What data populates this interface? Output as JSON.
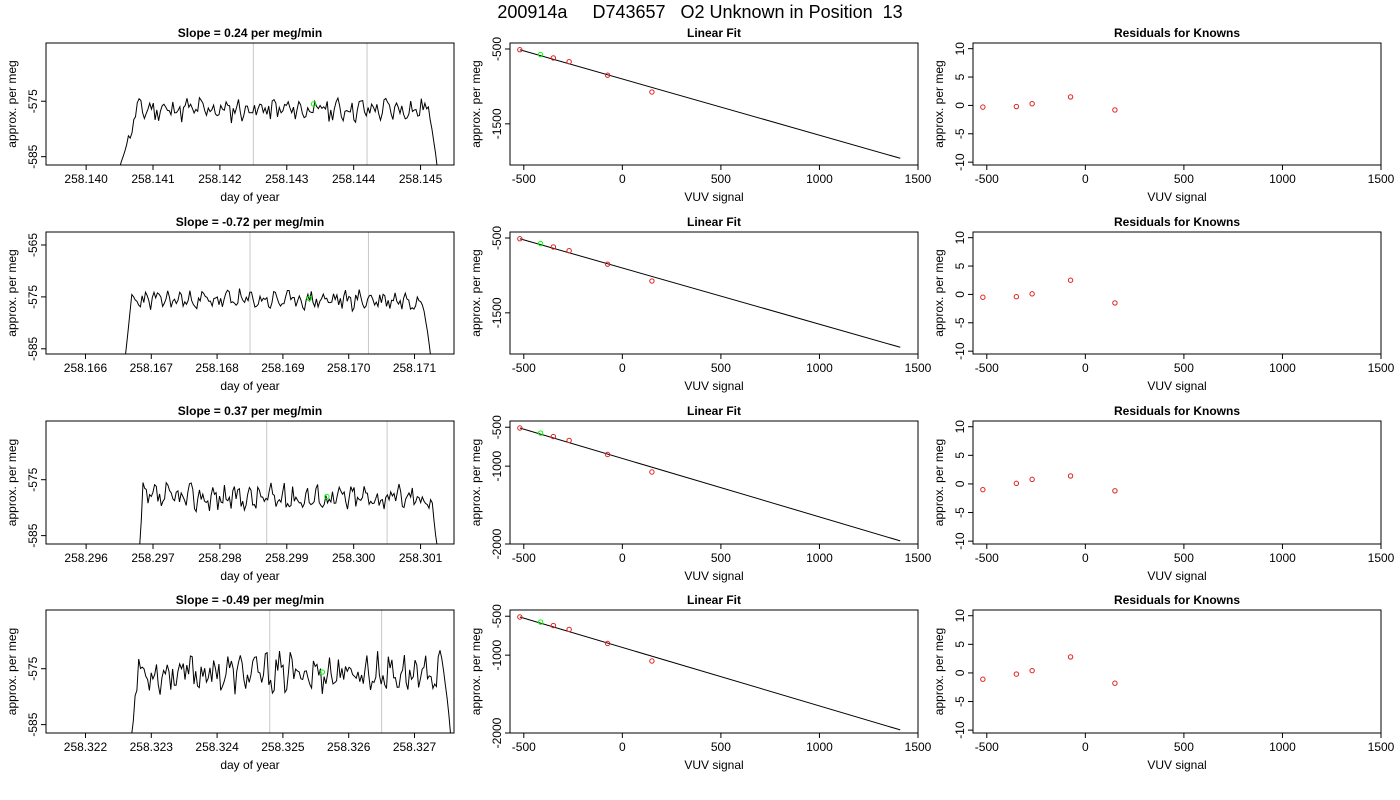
{
  "figure": {
    "title": "200914a     D743657   O2 Unknown in Position  13"
  },
  "chart_data": [
    {
      "type": "line",
      "row": 0,
      "col": 0,
      "title": "Slope =  0.24  per meg/min",
      "xlabel": "day of year",
      "ylabel": "approx. per meg",
      "xlim": [
        258.1394,
        258.1455
      ],
      "ylim": [
        -586.5,
        -564.5
      ],
      "xticks": [
        258.14,
        258.141,
        258.142,
        258.143,
        258.144,
        258.145
      ],
      "xtick_labels": [
        "258.140",
        "258.141",
        "258.142",
        "258.143",
        "258.144",
        "258.145"
      ],
      "yticks": [
        -585,
        -575
      ],
      "ytick_labels": [
        "-585",
        "-575"
      ],
      "vlines": [
        258.1425,
        258.1442
      ],
      "highlight_point": {
        "x": 258.1434,
        "y": -575.5,
        "color": "#00ff00"
      },
      "trace": {
        "x_start": 258.1405,
        "x_end": 258.14525,
        "y_start": -587,
        "y_end": -587,
        "base": -576.5,
        "rise_points": 10,
        "fall_points": 4,
        "noise": 1.6,
        "seed": 11
      }
    },
    {
      "type": "scatter",
      "row": 0,
      "col": 1,
      "title": "Linear Fit",
      "xlabel": "VUV signal",
      "ylabel": "approx. per meg",
      "xlim": [
        -570,
        1500
      ],
      "ylim": [
        -2050,
        -420
      ],
      "xticks": [
        -500,
        0,
        500,
        1000,
        1500
      ],
      "xtick_labels": [
        "-500",
        "0",
        "500",
        "1000",
        "1500"
      ],
      "yticks": [
        -500,
        -1500
      ],
      "ytick_labels": [
        "-500",
        "-1500"
      ],
      "points": {
        "x": [
          -520,
          -350,
          -270,
          -75,
          150
        ],
        "y": [
          -510,
          -620,
          -670,
          -850,
          -1075
        ],
        "color": "#dd2222"
      },
      "green_point": {
        "x": -415,
        "y": -575,
        "color": "#00ff00"
      },
      "fit_line": {
        "x": [
          -520,
          1410
        ],
        "y": [
          -510,
          -1960
        ]
      }
    },
    {
      "type": "scatter",
      "row": 0,
      "col": 2,
      "title": "Residuals for Knowns",
      "xlabel": "VUV signal",
      "ylabel": "approx. per meg",
      "xlim": [
        -570,
        1500
      ],
      "ylim": [
        -10.5,
        11
      ],
      "xticks": [
        -500,
        0,
        500,
        1000,
        1500
      ],
      "xtick_labels": [
        "-500",
        "0",
        "500",
        "1000",
        "1500"
      ],
      "yticks": [
        -10,
        -5,
        0,
        5,
        10
      ],
      "ytick_labels": [
        "-10",
        "-5",
        "0",
        "5",
        "10"
      ],
      "points": {
        "x": [
          -520,
          -350,
          -270,
          -75,
          150
        ],
        "y": [
          -0.3,
          -0.2,
          0.3,
          1.5,
          -0.8
        ],
        "color": "#dd2222"
      }
    },
    {
      "type": "line",
      "row": 1,
      "col": 0,
      "title": "Slope =  -0.72  per meg/min",
      "xlabel": "day of year",
      "ylabel": "approx. per meg",
      "xlim": [
        258.1654,
        258.1716
      ],
      "ylim": [
        -586,
        -562.5
      ],
      "xticks": [
        258.166,
        258.167,
        258.168,
        258.169,
        258.17,
        258.171
      ],
      "xtick_labels": [
        "258.166",
        "258.167",
        "258.168",
        "258.169",
        "258.170",
        "258.171"
      ],
      "yticks": [
        -585,
        -575,
        -565
      ],
      "ytick_labels": [
        "-585",
        "-575",
        "-565"
      ],
      "vlines": [
        258.1685,
        258.1703
      ],
      "highlight_point": {
        "x": 258.1694,
        "y": -575.3,
        "color": "#00ff00"
      },
      "trace": {
        "x_start": 258.1666,
        "x_end": 258.17125,
        "y_start": -587,
        "y_end": -587,
        "base": -575.6,
        "rise_points": 4,
        "fall_points": 4,
        "noise": 1.4,
        "seed": 23
      }
    },
    {
      "type": "scatter",
      "row": 1,
      "col": 1,
      "title": "Linear Fit",
      "xlabel": "VUV signal",
      "ylabel": "approx. per meg",
      "xlim": [
        -570,
        1500
      ],
      "ylim": [
        -2050,
        -420
      ],
      "xticks": [
        -500,
        0,
        500,
        1000,
        1500
      ],
      "xtick_labels": [
        "-500",
        "0",
        "500",
        "1000",
        "1500"
      ],
      "yticks": [
        -500,
        -1500
      ],
      "ytick_labels": [
        "-500",
        "-1500"
      ],
      "points": {
        "x": [
          -520,
          -350,
          -270,
          -75,
          150
        ],
        "y": [
          -510,
          -620,
          -670,
          -850,
          -1075
        ],
        "color": "#dd2222"
      },
      "green_point": {
        "x": -415,
        "y": -575,
        "color": "#00ff00"
      },
      "fit_line": {
        "x": [
          -520,
          1410
        ],
        "y": [
          -510,
          -1960
        ]
      }
    },
    {
      "type": "scatter",
      "row": 1,
      "col": 2,
      "title": "Residuals for Knowns",
      "xlabel": "VUV signal",
      "ylabel": "approx. per meg",
      "xlim": [
        -570,
        1500
      ],
      "ylim": [
        -10.5,
        11
      ],
      "xticks": [
        -500,
        0,
        500,
        1000,
        1500
      ],
      "xtick_labels": [
        "-500",
        "0",
        "500",
        "1000",
        "1500"
      ],
      "yticks": [
        -10,
        -5,
        0,
        5,
        10
      ],
      "ytick_labels": [
        "-10",
        "-5",
        "0",
        "5",
        "10"
      ],
      "points": {
        "x": [
          -520,
          -350,
          -270,
          -75,
          150
        ],
        "y": [
          -0.5,
          -0.4,
          0.1,
          2.5,
          -1.5
        ],
        "color": "#dd2222"
      }
    },
    {
      "type": "line",
      "row": 2,
      "col": 0,
      "title": "Slope =  0.37  per meg/min",
      "xlabel": "day of year",
      "ylabel": "approx. per meg",
      "xlim": [
        258.2954,
        258.3015
      ],
      "ylim": [
        -586.5,
        -564.5
      ],
      "xticks": [
        258.296,
        258.297,
        258.298,
        258.299,
        258.3,
        258.301
      ],
      "xtick_labels": [
        "258.296",
        "258.297",
        "258.298",
        "258.299",
        "258.300",
        "258.301"
      ],
      "yticks": [
        -585,
        -575
      ],
      "ytick_labels": [
        "-585",
        "-575"
      ],
      "vlines": [
        258.2987,
        258.3005
      ],
      "highlight_point": {
        "x": 258.2996,
        "y": -578.0,
        "color": "#00ff00"
      },
      "trace": {
        "x_start": 258.2968,
        "x_end": 258.30125,
        "y_start": -587,
        "y_end": -587,
        "base": -578.2,
        "rise_points": 2,
        "fall_points": 4,
        "noise": 1.8,
        "seed": 37
      }
    },
    {
      "type": "scatter",
      "row": 2,
      "col": 1,
      "title": "Linear Fit",
      "xlabel": "VUV signal",
      "ylabel": "approx. per meg",
      "xlim": [
        -570,
        1500
      ],
      "ylim": [
        -2000,
        -420
      ],
      "xticks": [
        -500,
        0,
        500,
        1000,
        1500
      ],
      "xtick_labels": [
        "-500",
        "0",
        "500",
        "1000",
        "1500"
      ],
      "yticks": [
        -500,
        -1000,
        -2000
      ],
      "ytick_labels": [
        "-500",
        "-1000",
        "-2000"
      ],
      "points": {
        "x": [
          -520,
          -350,
          -270,
          -75,
          150
        ],
        "y": [
          -510,
          -620,
          -670,
          -850,
          -1075
        ],
        "color": "#dd2222"
      },
      "green_point": {
        "x": -415,
        "y": -575,
        "color": "#00ff00"
      },
      "fit_line": {
        "x": [
          -520,
          1410
        ],
        "y": [
          -510,
          -1960
        ]
      }
    },
    {
      "type": "scatter",
      "row": 2,
      "col": 2,
      "title": "Residuals for Knowns",
      "xlabel": "VUV signal",
      "ylabel": "approx. per meg",
      "xlim": [
        -570,
        1500
      ],
      "ylim": [
        -10.5,
        11
      ],
      "xticks": [
        -500,
        0,
        500,
        1000,
        1500
      ],
      "xtick_labels": [
        "-500",
        "0",
        "500",
        "1000",
        "1500"
      ],
      "yticks": [
        -10,
        -5,
        0,
        5,
        10
      ],
      "ytick_labels": [
        "-10",
        "-5",
        "0",
        "5",
        "10"
      ],
      "points": {
        "x": [
          -520,
          -350,
          -270,
          -75,
          150
        ],
        "y": [
          -1.0,
          0.1,
          0.8,
          1.4,
          -1.2
        ],
        "color": "#dd2222"
      }
    },
    {
      "type": "line",
      "row": 3,
      "col": 0,
      "title": "Slope =  -0.49  per meg/min",
      "xlabel": "day of year",
      "ylabel": "approx. per meg",
      "xlim": [
        258.3214,
        258.3276
      ],
      "ylim": [
        -586.5,
        -564.5
      ],
      "xticks": [
        258.322,
        258.323,
        258.324,
        258.325,
        258.326,
        258.327
      ],
      "xtick_labels": [
        "258.322",
        "258.323",
        "258.324",
        "258.325",
        "258.326",
        "258.327"
      ],
      "yticks": [
        -585,
        -575
      ],
      "ytick_labels": [
        "-585",
        "-575"
      ],
      "vlines": [
        258.3248,
        258.3265
      ],
      "highlight_point": {
        "x": 258.3256,
        "y": -575.6,
        "color": "#00ff00"
      },
      "trace": {
        "x_start": 258.3227,
        "x_end": 258.32755,
        "y_start": -587,
        "y_end": -587,
        "base": -575.8,
        "rise_points": 3,
        "fall_points": 3,
        "noise": 2.6,
        "seed": 53
      }
    },
    {
      "type": "scatter",
      "row": 3,
      "col": 1,
      "title": "Linear Fit",
      "xlabel": "VUV signal",
      "ylabel": "approx. per meg",
      "xlim": [
        -570,
        1500
      ],
      "ylim": [
        -2000,
        -420
      ],
      "xticks": [
        -500,
        0,
        500,
        1000,
        1500
      ],
      "xtick_labels": [
        "-500",
        "0",
        "500",
        "1000",
        "1500"
      ],
      "yticks": [
        -500,
        -1000,
        -2000
      ],
      "ytick_labels": [
        "-500",
        "-1000",
        "-2000"
      ],
      "points": {
        "x": [
          -520,
          -350,
          -270,
          -75,
          150
        ],
        "y": [
          -510,
          -620,
          -670,
          -850,
          -1075
        ],
        "color": "#dd2222"
      },
      "green_point": {
        "x": -415,
        "y": -575,
        "color": "#00ff00"
      },
      "fit_line": {
        "x": [
          -520,
          1410
        ],
        "y": [
          -510,
          -1960
        ]
      }
    },
    {
      "type": "scatter",
      "row": 3,
      "col": 2,
      "title": "Residuals for Knowns",
      "xlabel": "VUV signal",
      "ylabel": "approx. per meg",
      "xlim": [
        -570,
        1500
      ],
      "ylim": [
        -10.5,
        11
      ],
      "xticks": [
        -500,
        0,
        500,
        1000,
        1500
      ],
      "xtick_labels": [
        "-500",
        "0",
        "500",
        "1000",
        "1500"
      ],
      "yticks": [
        -10,
        -5,
        0,
        5,
        10
      ],
      "ytick_labels": [
        "-10",
        "-5",
        "0",
        "5",
        "10"
      ],
      "points": {
        "x": [
          -520,
          -350,
          -270,
          -75,
          150
        ],
        "y": [
          -1.1,
          -0.2,
          0.4,
          2.8,
          -1.8
        ],
        "color": "#dd2222"
      }
    }
  ]
}
